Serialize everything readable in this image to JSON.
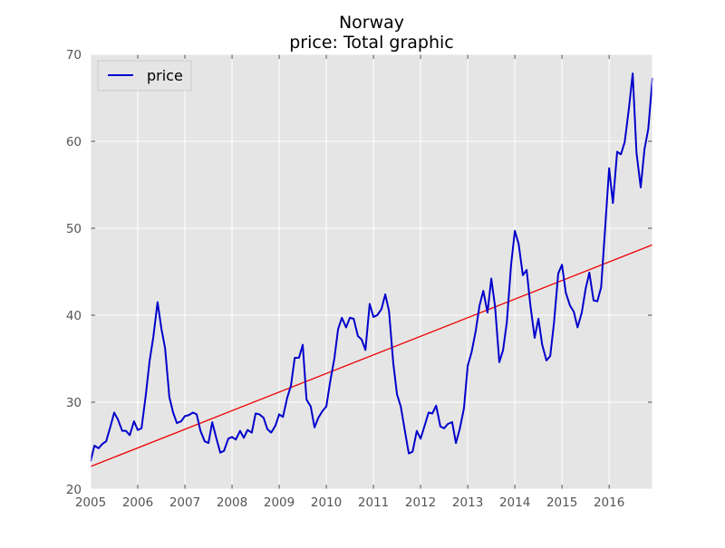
{
  "chart_data": {
    "type": "line",
    "title": "Norway",
    "subtitle": "price: Total graphic",
    "xlabel": "",
    "ylabel": "",
    "xlim": [
      2005.0,
      2016.92
    ],
    "ylim": [
      20,
      70
    ],
    "x_ticks": [
      "2005",
      "2006",
      "2007",
      "2008",
      "2009",
      "2010",
      "2011",
      "2012",
      "2013",
      "2014",
      "2015",
      "2016"
    ],
    "y_ticks": [
      "20",
      "30",
      "40",
      "50",
      "60",
      "70"
    ],
    "grid": true,
    "legend_position": "top-left",
    "colors": {
      "background": "#e5e5e5",
      "grid": "#ffffff",
      "price_line": "#0000cc",
      "trend_line": "#ee0000"
    },
    "series": [
      {
        "name": "price",
        "x": [
          2005.0,
          2005.08,
          2005.17,
          2005.25,
          2005.33,
          2005.42,
          2005.5,
          2005.58,
          2005.67,
          2005.75,
          2005.83,
          2005.92,
          2006.0,
          2006.08,
          2006.17,
          2006.25,
          2006.33,
          2006.42,
          2006.5,
          2006.58,
          2006.67,
          2006.75,
          2006.83,
          2006.92,
          2007.0,
          2007.08,
          2007.17,
          2007.25,
          2007.33,
          2007.42,
          2007.5,
          2007.58,
          2007.67,
          2007.75,
          2007.83,
          2007.92,
          2008.0,
          2008.08,
          2008.17,
          2008.25,
          2008.33,
          2008.42,
          2008.5,
          2008.58,
          2008.67,
          2008.75,
          2008.83,
          2008.92,
          2009.0,
          2009.08,
          2009.17,
          2009.25,
          2009.33,
          2009.42,
          2009.5,
          2009.58,
          2009.67,
          2009.75,
          2009.83,
          2009.92,
          2010.0,
          2010.08,
          2010.17,
          2010.25,
          2010.33,
          2010.42,
          2010.5,
          2010.58,
          2010.67,
          2010.75,
          2010.83,
          2010.92,
          2011.0,
          2011.08,
          2011.17,
          2011.25,
          2011.33,
          2011.42,
          2011.5,
          2011.58,
          2011.67,
          2011.75,
          2011.83,
          2011.92,
          2012.0,
          2012.08,
          2012.17,
          2012.25,
          2012.33,
          2012.42,
          2012.5,
          2012.58,
          2012.67,
          2012.75,
          2012.83,
          2012.92,
          2013.0,
          2013.08,
          2013.17,
          2013.25,
          2013.33,
          2013.42,
          2013.5,
          2013.58,
          2013.67,
          2013.75,
          2013.83,
          2013.92,
          2014.0,
          2014.08,
          2014.17,
          2014.25,
          2014.33,
          2014.42,
          2014.5,
          2014.58,
          2014.67,
          2014.75,
          2014.83,
          2014.92,
          2015.0,
          2015.08,
          2015.17,
          2015.25,
          2015.33,
          2015.42,
          2015.5,
          2015.58,
          2015.67,
          2015.75,
          2015.83,
          2015.92,
          2016.0,
          2016.08,
          2016.17,
          2016.25,
          2016.33,
          2016.42,
          2016.5,
          2016.58,
          2016.67,
          2016.75,
          2016.83,
          2016.92
        ],
        "values": [
          23.2,
          25.0,
          24.7,
          25.2,
          25.5,
          27.2,
          28.8,
          28.0,
          26.7,
          26.7,
          26.2,
          27.8,
          26.8,
          27.0,
          30.8,
          34.7,
          37.5,
          41.5,
          38.5,
          36.2,
          30.6,
          28.8,
          27.6,
          27.8,
          28.4,
          28.5,
          28.8,
          28.6,
          26.7,
          25.5,
          25.3,
          27.7,
          25.8,
          24.2,
          24.4,
          25.8,
          26.0,
          25.7,
          26.7,
          25.9,
          26.8,
          26.5,
          28.7,
          28.6,
          28.2,
          26.9,
          26.5,
          27.3,
          28.6,
          28.3,
          30.5,
          31.9,
          35.1,
          35.1,
          36.6,
          30.3,
          29.5,
          27.1,
          28.2,
          29.0,
          29.5,
          32.3,
          35.0,
          38.4,
          39.7,
          38.6,
          39.7,
          39.6,
          37.6,
          37.2,
          36.0,
          41.3,
          39.8,
          40.0,
          40.7,
          42.4,
          40.5,
          34.5,
          30.9,
          29.5,
          26.6,
          24.1,
          24.3,
          26.7,
          25.8,
          27.2,
          28.8,
          28.7,
          29.6,
          27.2,
          27.0,
          27.5,
          27.7,
          25.3,
          26.9,
          29.3,
          34.2,
          35.7,
          38.2,
          41.1,
          42.8,
          40.3,
          44.2,
          41.0,
          34.6,
          36.0,
          39.2,
          45.8,
          49.7,
          48.2,
          44.6,
          45.2,
          41.1,
          37.4,
          39.6,
          36.6,
          34.8,
          35.3,
          39.1,
          44.8,
          45.8,
          42.6,
          41.1,
          40.4,
          38.6,
          40.3,
          43.0,
          44.9,
          41.7,
          41.6,
          43.2,
          50.4,
          56.9,
          52.9,
          58.8,
          58.5,
          59.9,
          63.8,
          67.8,
          58.7,
          54.7,
          59.1,
          61.4,
          67.3
        ]
      }
    ],
    "trend_line": {
      "x": [
        2005.0,
        2016.92
      ],
      "values": [
        22.6,
        48.1
      ]
    },
    "legend": [
      {
        "label": "price",
        "color": "#0000cc"
      }
    ]
  }
}
